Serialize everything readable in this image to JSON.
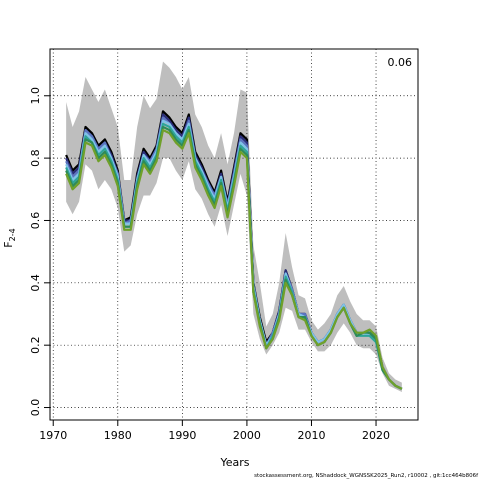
{
  "chart_data": {
    "type": "line",
    "xlabel": "Years",
    "ylabel_main": "F",
    "ylabel_sub": "2-4",
    "corner_label": "0.06",
    "footer": "stockassessment.org, NShaddock_WGNSSK2025_Run2, r10002 , git:1cc464b806f",
    "xlim": [
      1969.5,
      2026.5
    ],
    "ylim": [
      -0.04,
      1.15
    ],
    "x_ticks": [
      1970,
      1980,
      1990,
      2000,
      2010,
      2020
    ],
    "y_ticks": [
      0.0,
      0.2,
      0.4,
      0.6,
      0.8,
      1.0
    ],
    "grid": true,
    "colors": {
      "band": "#bebebe",
      "inner_band": "#1a1a1a",
      "series": [
        "#000000",
        "#2b2e7a",
        "#5b74c0",
        "#7fc3e8",
        "#2ea59a",
        "#2e8b57",
        "#6fa02a"
      ]
    },
    "x": [
      1972,
      1973,
      1974,
      1975,
      1976,
      1977,
      1978,
      1979,
      1980,
      1981,
      1982,
      1983,
      1984,
      1985,
      1986,
      1987,
      1988,
      1989,
      1990,
      1991,
      1992,
      1993,
      1994,
      1995,
      1996,
      1997,
      1998,
      1999,
      2000,
      2001,
      2002,
      2003,
      2004,
      2005,
      2006,
      2007,
      2008,
      2009,
      2010,
      2011,
      2012,
      2013,
      2014,
      2015,
      2016,
      2017,
      2018,
      2019,
      2020,
      2021,
      2022,
      2023,
      2024
    ],
    "band_low": [
      0.66,
      0.62,
      0.66,
      0.78,
      0.76,
      0.7,
      0.73,
      0.7,
      0.64,
      0.5,
      0.52,
      0.62,
      0.68,
      0.68,
      0.72,
      0.8,
      0.8,
      0.76,
      0.73,
      0.79,
      0.7,
      0.67,
      0.62,
      0.58,
      0.65,
      0.55,
      0.65,
      0.75,
      0.68,
      0.3,
      0.22,
      0.17,
      0.2,
      0.24,
      0.32,
      0.31,
      0.25,
      0.25,
      0.21,
      0.18,
      0.18,
      0.2,
      0.24,
      0.27,
      0.24,
      0.2,
      0.19,
      0.19,
      0.17,
      0.11,
      0.07,
      0.06,
      0.05
    ],
    "band_high": [
      0.98,
      0.9,
      0.95,
      1.06,
      1.02,
      0.98,
      1.02,
      0.96,
      0.9,
      0.73,
      0.73,
      0.9,
      1.0,
      0.96,
      0.99,
      1.11,
      1.09,
      1.06,
      1.02,
      1.06,
      0.94,
      0.9,
      0.84,
      0.8,
      0.88,
      0.78,
      0.88,
      1.02,
      1.01,
      0.52,
      0.4,
      0.26,
      0.3,
      0.4,
      0.56,
      0.45,
      0.36,
      0.35,
      0.28,
      0.25,
      0.27,
      0.3,
      0.36,
      0.39,
      0.34,
      0.3,
      0.28,
      0.28,
      0.26,
      0.16,
      0.11,
      0.09,
      0.08
    ],
    "series": [
      {
        "values": [
          0.81,
          0.76,
          0.78,
          0.9,
          0.88,
          0.84,
          0.86,
          0.82,
          0.76,
          0.6,
          0.61,
          0.75,
          0.83,
          0.8,
          0.84,
          0.95,
          0.93,
          0.9,
          0.88,
          0.94,
          0.82,
          0.78,
          0.73,
          0.69,
          0.76,
          0.66,
          0.77,
          0.88,
          0.86,
          0.4,
          0.29,
          0.21,
          0.24,
          0.31,
          0.44,
          0.38,
          0.3,
          0.3,
          0.24,
          0.21,
          0.22,
          0.25,
          0.3,
          0.33,
          0.28,
          0.24,
          0.24,
          0.24,
          0.22,
          0.13,
          0.09,
          0.07,
          0.06
        ]
      },
      {
        "values": [
          0.8,
          0.75,
          0.77,
          0.89,
          0.87,
          0.83,
          0.85,
          0.81,
          0.75,
          0.6,
          0.6,
          0.74,
          0.82,
          0.79,
          0.83,
          0.94,
          0.92,
          0.89,
          0.87,
          0.93,
          0.81,
          0.77,
          0.72,
          0.68,
          0.75,
          0.65,
          0.76,
          0.87,
          0.85,
          0.4,
          0.28,
          0.2,
          0.24,
          0.31,
          0.44,
          0.38,
          0.3,
          0.3,
          0.24,
          0.21,
          0.22,
          0.25,
          0.3,
          0.33,
          0.28,
          0.24,
          0.24,
          0.24,
          0.22,
          0.13,
          0.09,
          0.07,
          0.06
        ]
      },
      {
        "values": [
          0.79,
          0.74,
          0.76,
          0.89,
          0.87,
          0.83,
          0.85,
          0.8,
          0.75,
          0.59,
          0.6,
          0.73,
          0.81,
          0.79,
          0.83,
          0.93,
          0.91,
          0.88,
          0.86,
          0.92,
          0.8,
          0.76,
          0.72,
          0.68,
          0.74,
          0.65,
          0.75,
          0.86,
          0.84,
          0.39,
          0.28,
          0.2,
          0.24,
          0.3,
          0.43,
          0.38,
          0.3,
          0.3,
          0.24,
          0.21,
          0.22,
          0.25,
          0.3,
          0.33,
          0.28,
          0.24,
          0.24,
          0.24,
          0.22,
          0.13,
          0.09,
          0.07,
          0.06
        ]
      },
      {
        "values": [
          0.78,
          0.73,
          0.75,
          0.88,
          0.86,
          0.82,
          0.84,
          0.8,
          0.74,
          0.59,
          0.59,
          0.73,
          0.81,
          0.78,
          0.82,
          0.92,
          0.91,
          0.88,
          0.86,
          0.91,
          0.8,
          0.76,
          0.71,
          0.67,
          0.74,
          0.64,
          0.74,
          0.85,
          0.83,
          0.39,
          0.28,
          0.2,
          0.23,
          0.3,
          0.43,
          0.37,
          0.3,
          0.29,
          0.24,
          0.21,
          0.22,
          0.25,
          0.3,
          0.33,
          0.28,
          0.24,
          0.24,
          0.23,
          0.21,
          0.13,
          0.09,
          0.07,
          0.06
        ]
      },
      {
        "values": [
          0.77,
          0.72,
          0.74,
          0.87,
          0.85,
          0.81,
          0.83,
          0.79,
          0.73,
          0.58,
          0.58,
          0.72,
          0.8,
          0.77,
          0.81,
          0.91,
          0.9,
          0.87,
          0.85,
          0.9,
          0.79,
          0.75,
          0.7,
          0.66,
          0.73,
          0.63,
          0.73,
          0.84,
          0.82,
          0.38,
          0.27,
          0.19,
          0.23,
          0.29,
          0.42,
          0.37,
          0.29,
          0.29,
          0.23,
          0.2,
          0.21,
          0.24,
          0.29,
          0.32,
          0.27,
          0.23,
          0.23,
          0.23,
          0.21,
          0.12,
          0.09,
          0.07,
          0.06
        ]
      },
      {
        "values": [
          0.76,
          0.71,
          0.73,
          0.86,
          0.85,
          0.8,
          0.82,
          0.78,
          0.72,
          0.58,
          0.58,
          0.71,
          0.79,
          0.76,
          0.8,
          0.9,
          0.89,
          0.86,
          0.84,
          0.89,
          0.78,
          0.74,
          0.69,
          0.65,
          0.72,
          0.62,
          0.72,
          0.83,
          0.81,
          0.37,
          0.27,
          0.19,
          0.22,
          0.29,
          0.41,
          0.36,
          0.29,
          0.29,
          0.23,
          0.2,
          0.21,
          0.24,
          0.29,
          0.32,
          0.27,
          0.23,
          0.24,
          0.24,
          0.22,
          0.12,
          0.09,
          0.07,
          0.06
        ]
      },
      {
        "values": [
          0.75,
          0.7,
          0.72,
          0.85,
          0.84,
          0.79,
          0.81,
          0.77,
          0.71,
          0.57,
          0.57,
          0.7,
          0.78,
          0.75,
          0.79,
          0.89,
          0.88,
          0.85,
          0.83,
          0.88,
          0.77,
          0.73,
          0.68,
          0.64,
          0.71,
          0.61,
          0.71,
          0.82,
          0.8,
          0.37,
          0.26,
          0.19,
          0.22,
          0.28,
          0.4,
          0.36,
          0.29,
          0.28,
          0.23,
          0.2,
          0.21,
          0.24,
          0.29,
          0.32,
          0.27,
          0.24,
          0.24,
          0.25,
          0.23,
          0.13,
          0.09,
          0.07,
          0.06
        ]
      }
    ]
  }
}
